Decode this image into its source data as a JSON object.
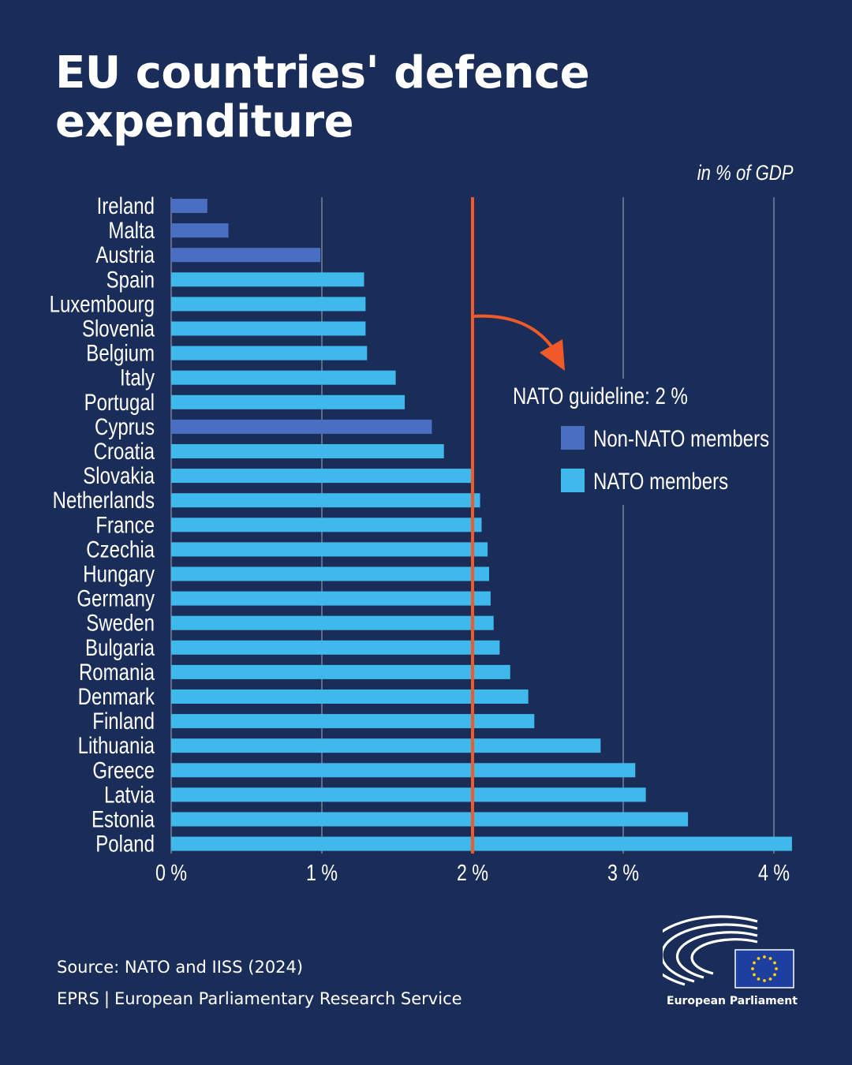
{
  "title_line1": "EU countries' defence",
  "title_line2": "expenditure",
  "unit_label": "in % of GDP",
  "colors": {
    "background": "#1a2d59",
    "nato": "#3fb8ec",
    "non_nato": "#4a6fc2",
    "guideline": "#f05a28",
    "grid": "#8a97b3"
  },
  "chart_data": {
    "type": "bar",
    "orientation": "horizontal",
    "xlabel": "in % of GDP",
    "xlim": [
      0,
      4.2
    ],
    "x_ticks": [
      0,
      1,
      2,
      3,
      4
    ],
    "x_tick_labels": [
      "0 %",
      "1 %",
      "2 %",
      "3 %",
      "4 %"
    ],
    "categories": [
      "Ireland",
      "Malta",
      "Austria",
      "Spain",
      "Luxembourg",
      "Slovenia",
      "Belgium",
      "Italy",
      "Portugal",
      "Cyprus",
      "Croatia",
      "Slovakia",
      "Netherlands",
      "France",
      "Czechia",
      "Hungary",
      "Germany",
      "Sweden",
      "Bulgaria",
      "Romania",
      "Denmark",
      "Finland",
      "Lithuania",
      "Greece",
      "Latvia",
      "Estonia",
      "Poland"
    ],
    "values": [
      0.24,
      0.38,
      0.99,
      1.28,
      1.29,
      1.29,
      1.3,
      1.49,
      1.55,
      1.73,
      1.81,
      1.99,
      2.05,
      2.06,
      2.1,
      2.11,
      2.12,
      2.14,
      2.18,
      2.25,
      2.37,
      2.41,
      2.85,
      3.08,
      3.15,
      3.43,
      4.12
    ],
    "membership": [
      "non_nato",
      "non_nato",
      "non_nato",
      "nato",
      "nato",
      "nato",
      "nato",
      "nato",
      "nato",
      "non_nato",
      "nato",
      "nato",
      "nato",
      "nato",
      "nato",
      "nato",
      "nato",
      "nato",
      "nato",
      "nato",
      "nato",
      "nato",
      "nato",
      "nato",
      "nato",
      "nato",
      "nato"
    ],
    "guideline_value": 2,
    "guideline_label": "NATO guideline: 2 %",
    "legend": [
      {
        "key": "non_nato",
        "label": "Non-NATO members"
      },
      {
        "key": "nato",
        "label": "NATO members"
      }
    ]
  },
  "footer": {
    "source": "Source: NATO and IISS (2024)",
    "org_short": "EPRS",
    "org_sep": "|",
    "org_long": "European Parliamentary Research Service",
    "logo_text": "European Parliament"
  }
}
